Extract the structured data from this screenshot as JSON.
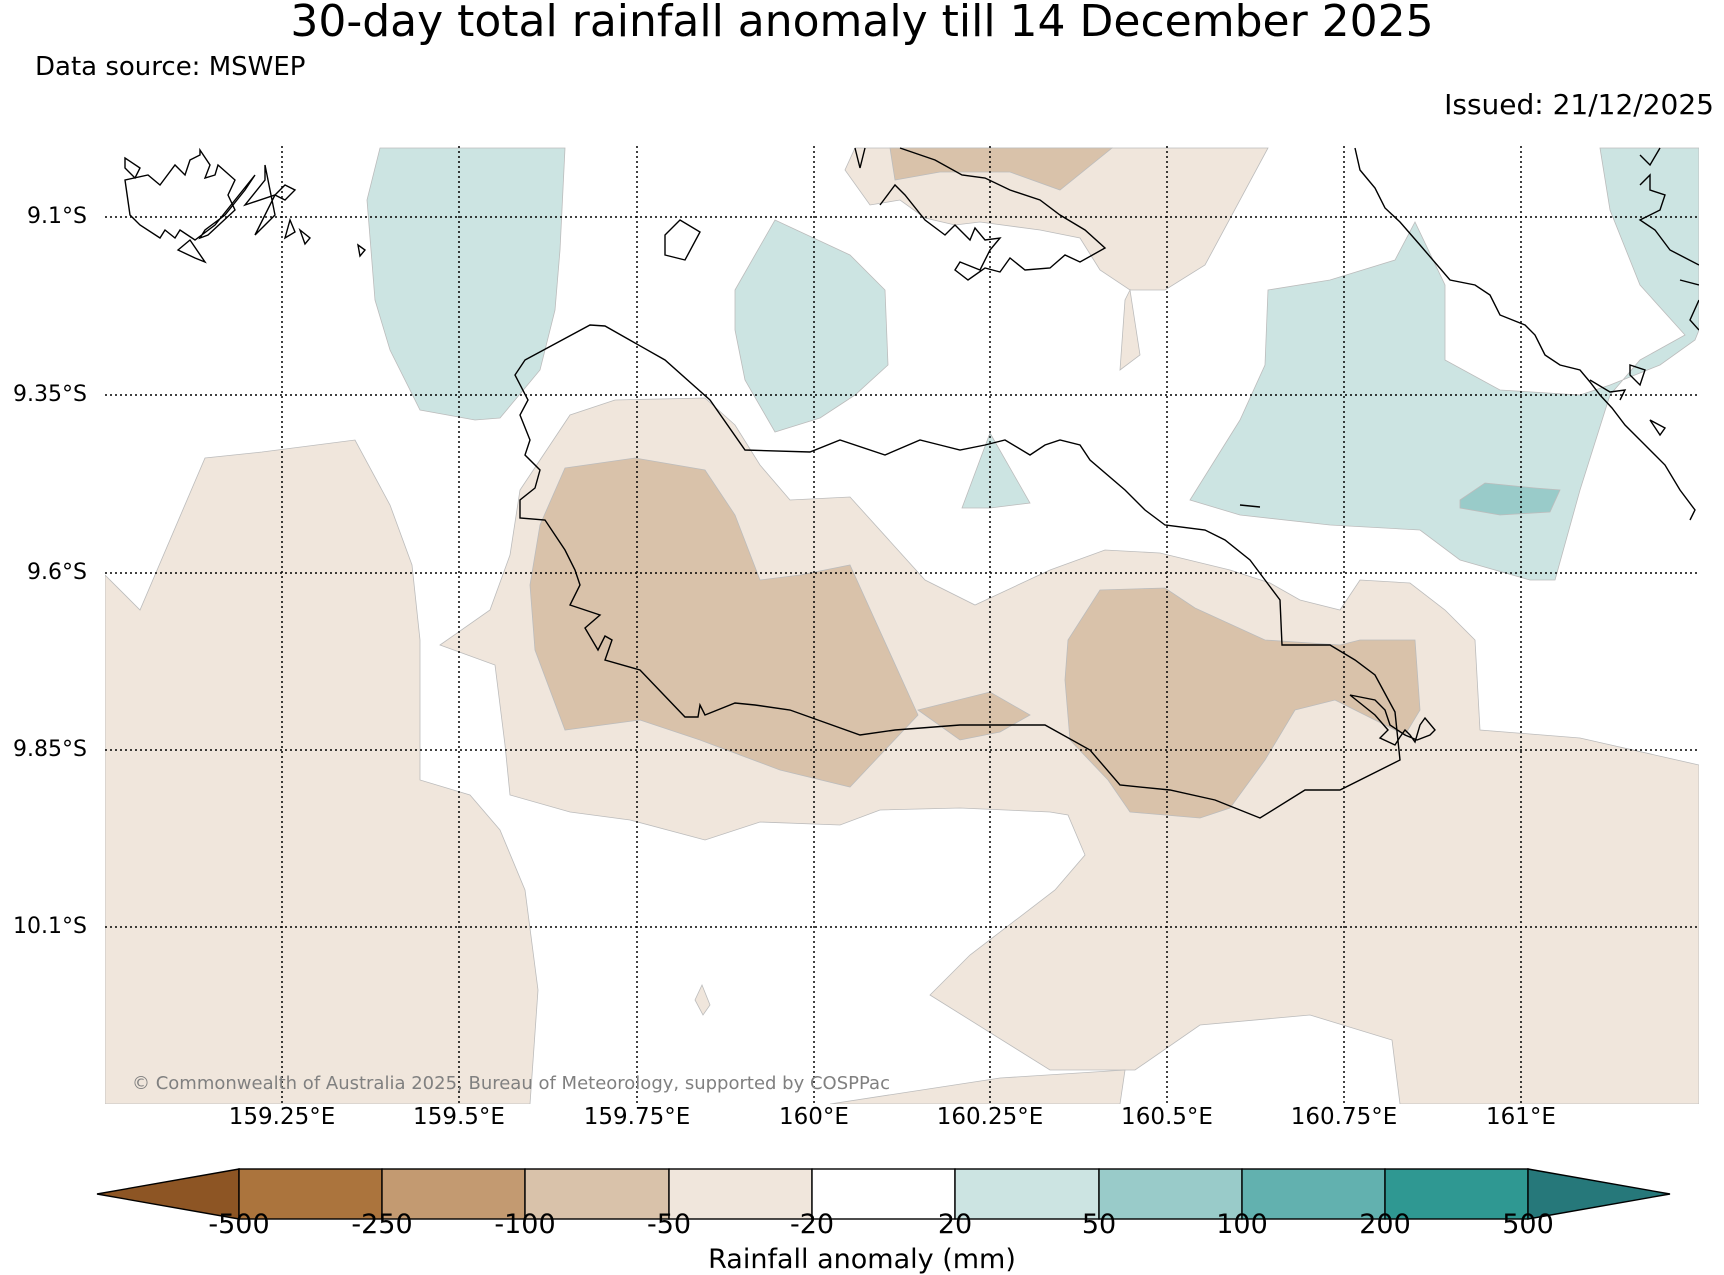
{
  "header": {
    "title": "30-day total rainfall anomaly till 14 December 2025",
    "source": "Data source: MSWEP",
    "issued": "Issued: 21/12/2025"
  },
  "map": {
    "lat_labels": [
      "9.1°S",
      "9.35°S",
      "9.6°S",
      "9.85°S",
      "10.1°S"
    ],
    "lon_labels": [
      "159.25°E",
      "159.5°E",
      "159.75°E",
      "160°E",
      "160.25°E",
      "160.5°E",
      "160.75°E",
      "161°E"
    ],
    "copyright": "© Commonwealth of Australia 2025, Bureau of Meteorology, supported by COSPPac"
  },
  "colorbar": {
    "title": "Rainfall anomaly (mm)",
    "labels": [
      "-500",
      "-250",
      "-100",
      "-50",
      "-20",
      "20",
      "50",
      "100",
      "200",
      "500"
    ],
    "colors": {
      "lt_-500": "#8d5524",
      "bin_1": "#ab743d",
      "bin_2": "#c39a71",
      "bin_3": "#d9c2aa",
      "bin_4": "#f0e6dc",
      "bin_5": "#ffffff",
      "bin_6": "#cce4e2",
      "bin_7": "#99cbc9",
      "bin_8": "#62b1af",
      "bin_9": "#2f9892",
      "gt_500": "#26787a"
    }
  }
}
